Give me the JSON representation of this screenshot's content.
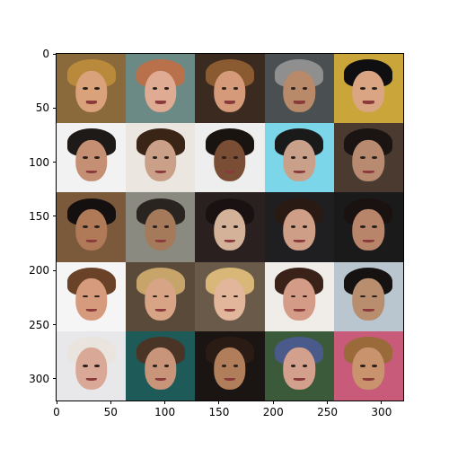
{
  "figure": {
    "grid_rows": 5,
    "grid_cols": 5,
    "tiles": [
      {
        "name": "face-r1c1",
        "bg": "#8a6a3a",
        "skin": "#d9a27a",
        "hair": "#b98a3c"
      },
      {
        "name": "face-r1c2",
        "bg": "#6b8a86",
        "skin": "#e0ab93",
        "hair": "#b8714a"
      },
      {
        "name": "face-r1c3",
        "bg": "#3a2a20",
        "skin": "#d49a7a",
        "hair": "#8a5a30"
      },
      {
        "name": "face-r1c4",
        "bg": "#4a4f52",
        "skin": "#b98a6a",
        "hair": "#8f8f8f"
      },
      {
        "name": "face-r1c5",
        "bg": "#c9a53a",
        "skin": "#d9a583",
        "hair": "#0f0f12"
      },
      {
        "name": "face-r2c1",
        "bg": "#f2f2f2",
        "skin": "#c48f73",
        "hair": "#1e1a18"
      },
      {
        "name": "face-r2c2",
        "bg": "#ebe6df",
        "skin": "#caa188",
        "hair": "#3a2416"
      },
      {
        "name": "face-r2c3",
        "bg": "#eeeeee",
        "skin": "#7a4e34",
        "hair": "#1a1410"
      },
      {
        "name": "face-r2c4",
        "bg": "#7cd6ea",
        "skin": "#c9a08a",
        "hair": "#1a1a1a"
      },
      {
        "name": "face-r2c5",
        "bg": "#4a3a30",
        "skin": "#b88a70",
        "hair": "#1a1412"
      },
      {
        "name": "face-r3c1",
        "bg": "#7a5a3a",
        "skin": "#b07a58",
        "hair": "#151010"
      },
      {
        "name": "face-r3c2",
        "bg": "#8a8a80",
        "skin": "#a57a5a",
        "hair": "#2a2420"
      },
      {
        "name": "face-r3c3",
        "bg": "#2a2020",
        "skin": "#d4b29a",
        "hair": "#1a1212"
      },
      {
        "name": "face-r3c4",
        "bg": "#1f1f22",
        "skin": "#cf9e86",
        "hair": "#2a1a14"
      },
      {
        "name": "face-r3c5",
        "bg": "#1a1a1a",
        "skin": "#b8846a",
        "hair": "#1a1210"
      },
      {
        "name": "face-r4c1",
        "bg": "#f5f5f5",
        "skin": "#d69b7c",
        "hair": "#6a4228"
      },
      {
        "name": "face-r4c2",
        "bg": "#5a4a3a",
        "skin": "#d8a486",
        "hair": "#c7a46a"
      },
      {
        "name": "face-r4c3",
        "bg": "#6a5a4a",
        "skin": "#e2b69a",
        "hair": "#d8b778"
      },
      {
        "name": "face-r4c4",
        "bg": "#f0ece8",
        "skin": "#d49c86",
        "hair": "#3a2218"
      },
      {
        "name": "face-r4c5",
        "bg": "#b9c6cf",
        "skin": "#b88e6e",
        "hair": "#161212"
      },
      {
        "name": "face-r5c1",
        "bg": "#e8e8ea",
        "skin": "#d9a896",
        "hair": "#e9e4de"
      },
      {
        "name": "face-r5c2",
        "bg": "#1e5a58",
        "skin": "#c9957a",
        "hair": "#4a3426"
      },
      {
        "name": "face-r5c3",
        "bg": "#1a1412",
        "skin": "#b07e5a",
        "hair": "#2a1c14"
      },
      {
        "name": "face-r5c4",
        "bg": "#3a5a3a",
        "skin": "#d4a08e",
        "hair": "#4a5a8a"
      },
      {
        "name": "face-r5c5",
        "bg": "#c85a7a",
        "skin": "#c9936e",
        "hair": "#9a6a3a"
      }
    ],
    "x_axis": {
      "ticks": [
        0,
        50,
        100,
        150,
        200,
        250,
        300
      ],
      "range": [
        0,
        320
      ]
    },
    "y_axis": {
      "ticks": [
        0,
        50,
        100,
        150,
        200,
        250,
        300
      ],
      "range": [
        0,
        320
      ]
    }
  }
}
